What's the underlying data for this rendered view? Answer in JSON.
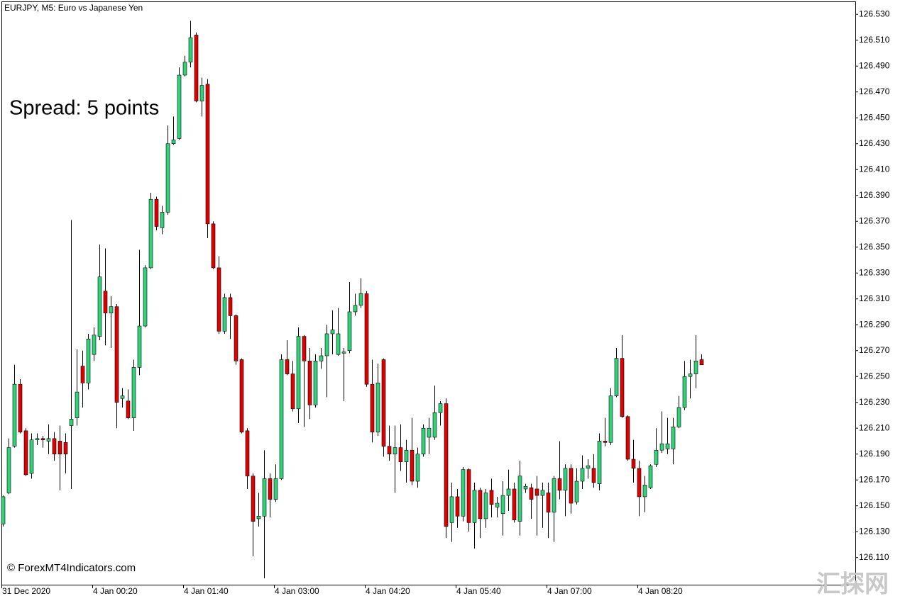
{
  "chart_data": {
    "type": "candlestick",
    "title": "EURJPY, M5:  Euro vs Japanese Yen",
    "annotation": "Spread: 5 points",
    "copyright": "© ForexMT4Indicators.com",
    "watermark": "汇探网",
    "x_labels": [
      "31 Dec 2020",
      "4 Jan 00:20",
      "4 Jan 01:40",
      "4 Jan 03:00",
      "4 Jan 04:20",
      "4 Jan 05:40",
      "4 Jan 07:00",
      "4 Jan 08:20"
    ],
    "up_color": "#2ed47a",
    "down_color": "#e00000",
    "ylim": [
      126.089,
      126.54
    ],
    "yticks": [
      {
        "value": 126.53,
        "label": "126.530"
      },
      {
        "value": 126.51,
        "label": "126.510"
      },
      {
        "value": 126.49,
        "label": "126.490"
      },
      {
        "value": 126.47,
        "label": "126.470"
      },
      {
        "value": 126.45,
        "label": "126.450"
      },
      {
        "value": 126.43,
        "label": "126.430"
      },
      {
        "value": 126.41,
        "label": "126.410"
      },
      {
        "value": 126.39,
        "label": "126.390"
      },
      {
        "value": 126.37,
        "label": "126.370"
      },
      {
        "value": 126.35,
        "label": "126.350"
      },
      {
        "value": 126.33,
        "label": "126.330"
      },
      {
        "value": 126.31,
        "label": "126.310"
      },
      {
        "value": 126.29,
        "label": "126.290"
      },
      {
        "value": 126.27,
        "label": "126.270"
      },
      {
        "value": 126.25,
        "label": "126.250"
      },
      {
        "value": 126.23,
        "label": "126.230"
      },
      {
        "value": 126.21,
        "label": "126.210"
      },
      {
        "value": 126.19,
        "label": "126.190"
      },
      {
        "value": 126.17,
        "label": "126.170"
      },
      {
        "value": 126.15,
        "label": "126.150"
      },
      {
        "value": 126.13,
        "label": "126.130"
      },
      {
        "value": 126.11,
        "label": "126.110"
      }
    ],
    "open": [
      126.136,
      126.16,
      126.196,
      126.244,
      126.208,
      126.175,
      126.201,
      126.202,
      126.2,
      126.202,
      126.2,
      126.199,
      126.212,
      126.218,
      126.258,
      126.245,
      126.267,
      126.281,
      126.316,
      126.299,
      126.304,
      126.233,
      126.231,
      126.218,
      126.257,
      126.289,
      126.334,
      126.387,
      126.365,
      126.377,
      126.43,
      126.434,
      126.483,
      126.493,
      126.514,
      126.463,
      126.476,
      126.368,
      126.334,
      126.285,
      126.311,
      126.297,
      126.263,
      126.208,
      126.173,
      126.14,
      126.142,
      126.171,
      126.155,
      126.171,
      126.263,
      126.252,
      126.225,
      126.281,
      126.262,
      126.228,
      126.262,
      126.266,
      126.283,
      126.267,
      126.268,
      126.27,
      126.3,
      126.305,
      126.314,
      126.244,
      126.207,
      126.263,
      126.196,
      126.19,
      126.195,
      126.184,
      126.193,
      126.169,
      126.19,
      126.203,
      126.203,
      126.222,
      126.229,
      126.137,
      126.157,
      126.142,
      126.178,
      126.137,
      126.162,
      126.14,
      126.162,
      126.149,
      126.144,
      126.158,
      126.163,
      126.138,
      126.163,
      126.164,
      126.163,
      126.158,
      126.16,
      126.145,
      126.171,
      126.162,
      126.179,
      126.153,
      126.169,
      126.179,
      126.179,
      126.167,
      126.2,
      126.199,
      126.235,
      126.264,
      126.219,
      126.186,
      126.179,
      126.157,
      126.164,
      126.182,
      126.193,
      126.194,
      126.194,
      126.211,
      126.226,
      126.25,
      126.252,
      126.263
    ],
    "high": [
      126.158,
      126.202,
      126.259,
      126.248,
      126.21,
      126.206,
      126.206,
      126.204,
      126.213,
      126.207,
      126.212,
      126.206,
      126.371,
      126.271,
      126.27,
      126.283,
      126.288,
      126.352,
      126.349,
      126.312,
      126.306,
      126.241,
      126.24,
      126.263,
      126.348,
      126.336,
      126.392,
      126.389,
      126.382,
      126.444,
      126.451,
      126.489,
      126.498,
      126.525,
      126.516,
      126.481,
      126.48,
      126.37,
      126.343,
      126.314,
      126.314,
      126.298,
      126.264,
      126.21,
      126.175,
      126.16,
      126.193,
      126.175,
      126.182,
      126.267,
      126.278,
      126.262,
      126.288,
      126.282,
      126.272,
      126.267,
      126.272,
      126.29,
      126.301,
      126.303,
      126.272,
      126.323,
      126.314,
      126.326,
      126.316,
      126.263,
      126.26,
      126.264,
      126.212,
      126.212,
      126.213,
      126.201,
      126.218,
      126.195,
      126.213,
      126.218,
      126.243,
      126.231,
      126.233,
      126.168,
      126.163,
      126.18,
      126.179,
      126.168,
      126.164,
      126.163,
      126.171,
      126.157,
      126.169,
      126.178,
      126.168,
      126.185,
      126.167,
      126.167,
      126.173,
      126.168,
      126.168,
      126.173,
      126.2,
      126.182,
      126.182,
      126.179,
      126.189,
      126.186,
      126.19,
      126.206,
      126.218,
      126.241,
      126.272,
      126.282,
      126.22,
      126.201,
      126.185,
      126.173,
      126.182,
      126.21,
      126.223,
      126.218,
      126.218,
      126.235,
      126.262,
      126.263,
      126.282,
      126.267
    ],
    "low": [
      126.134,
      126.159,
      126.195,
      126.206,
      126.173,
      126.171,
      126.197,
      126.195,
      126.19,
      126.185,
      126.162,
      126.175,
      126.163,
      126.212,
      126.226,
      126.24,
      126.262,
      126.278,
      126.274,
      126.272,
      126.21,
      126.226,
      126.217,
      126.208,
      126.251,
      126.288,
      126.333,
      126.363,
      126.36,
      126.375,
      126.429,
      126.433,
      126.482,
      126.489,
      126.462,
      126.451,
      126.357,
      126.333,
      126.283,
      126.283,
      126.279,
      126.259,
      126.206,
      126.163,
      126.111,
      126.134,
      126.094,
      126.141,
      126.153,
      126.17,
      126.251,
      126.223,
      126.214,
      126.211,
      126.217,
      126.226,
      126.256,
      126.234,
      126.267,
      126.266,
      126.231,
      126.268,
      126.297,
      126.303,
      126.242,
      126.199,
      126.204,
      126.188,
      126.185,
      126.16,
      126.177,
      126.168,
      126.166,
      126.164,
      126.188,
      126.19,
      126.201,
      126.212,
      126.125,
      126.122,
      126.133,
      126.138,
      126.13,
      126.117,
      126.125,
      126.133,
      126.141,
      126.141,
      126.127,
      126.146,
      126.137,
      126.127,
      126.16,
      126.14,
      126.127,
      126.133,
      126.125,
      126.122,
      126.155,
      126.142,
      126.144,
      126.151,
      126.163,
      126.171,
      126.164,
      126.162,
      126.196,
      126.197,
      126.234,
      126.218,
      126.185,
      126.168,
      126.142,
      126.145,
      126.163,
      126.18,
      126.191,
      126.19,
      126.182,
      126.21,
      126.224,
      126.233,
      126.241,
      126.259
    ],
    "close": [
      126.157,
      126.195,
      126.244,
      126.207,
      126.174,
      126.201,
      126.202,
      126.201,
      126.202,
      126.19,
      126.19,
      126.19,
      126.217,
      126.238,
      126.245,
      126.279,
      126.282,
      126.327,
      126.299,
      126.304,
      126.23,
      126.235,
      126.218,
      126.257,
      126.289,
      126.334,
      126.387,
      126.366,
      126.377,
      126.43,
      126.433,
      126.483,
      126.493,
      126.512,
      126.463,
      126.475,
      126.368,
      126.334,
      126.285,
      126.311,
      126.297,
      126.262,
      126.207,
      126.173,
      126.138,
      126.142,
      126.171,
      126.155,
      126.171,
      126.263,
      126.252,
      126.225,
      126.281,
      126.262,
      126.228,
      126.262,
      126.266,
      126.283,
      126.286,
      126.283,
      126.269,
      126.3,
      126.305,
      126.314,
      126.244,
      126.207,
      126.245,
      126.196,
      126.19,
      126.195,
      126.184,
      126.193,
      126.169,
      126.19,
      126.21,
      126.21,
      126.222,
      126.229,
      126.134,
      126.157,
      126.142,
      126.178,
      126.137,
      126.162,
      126.14,
      126.16,
      126.151,
      126.152,
      126.158,
      126.163,
      126.139,
      126.173,
      126.165,
      126.155,
      126.158,
      126.162,
      126.145,
      126.171,
      126.162,
      126.179,
      126.152,
      126.169,
      126.179,
      126.181,
      126.168,
      126.2,
      126.199,
      126.235,
      126.264,
      126.219,
      126.186,
      126.179,
      126.157,
      126.166,
      126.181,
      126.193,
      126.198,
      126.198,
      126.211,
      126.226,
      126.25,
      126.252,
      126.262,
      126.259
    ]
  }
}
